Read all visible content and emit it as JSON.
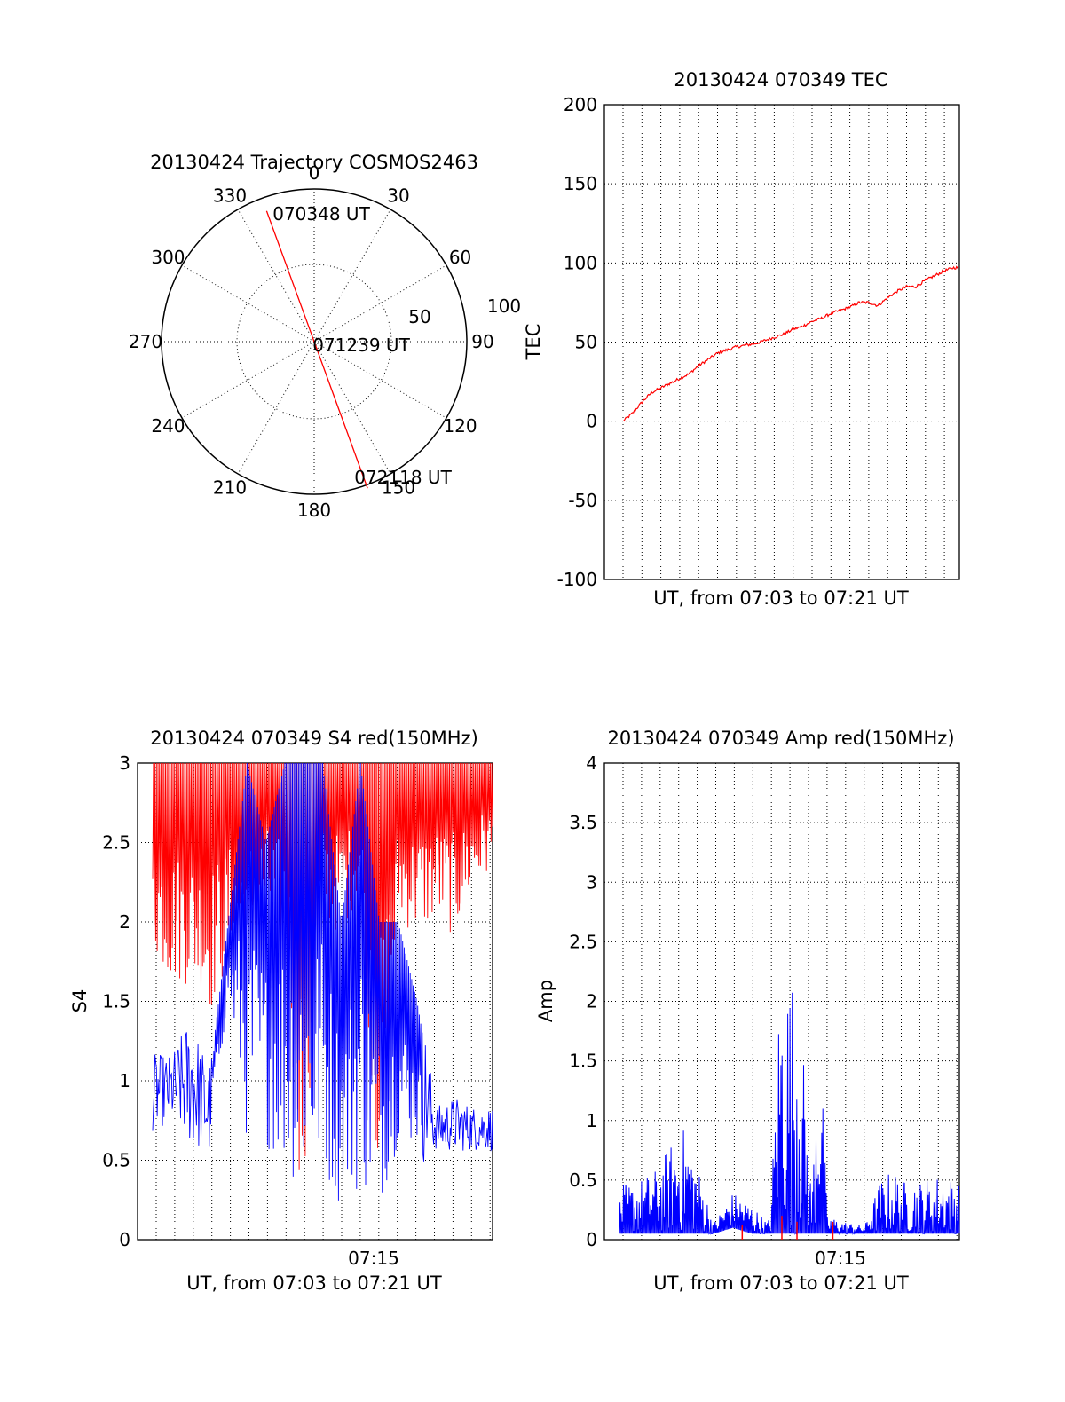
{
  "chart_data": [
    {
      "type": "polar-trajectory",
      "title": "20130424 Trajectory COSMOS2463",
      "azimuth_labels": [
        "0",
        "30",
        "60",
        "90",
        "120",
        "150",
        "180",
        "210",
        "240",
        "270",
        "300",
        "330"
      ],
      "ring_labels": [
        "50",
        "100"
      ],
      "points": [
        {
          "label": "070348 UT",
          "azimuth_deg": 340,
          "zenith_deg": 82
        },
        {
          "label": "071239 UT",
          "azimuth_deg": 0,
          "zenith_deg": 0
        },
        {
          "label": "072118 UT",
          "azimuth_deg": 160,
          "zenith_deg": 92
        }
      ],
      "series_color": "#ff0000"
    },
    {
      "type": "line",
      "title": "20130424 070349 TEC",
      "xlabel": "UT, from 07:03 to 07:21 UT",
      "ylabel": "TEC",
      "ylim": [
        -100,
        200
      ],
      "yticks": [
        "200",
        "150",
        "100",
        "50",
        "0",
        "-50",
        "-100"
      ],
      "x_minutes_from_0703": [
        0.0,
        0.5,
        1.0,
        1.5,
        2.0,
        2.5,
        3.0,
        3.5,
        4.0,
        4.5,
        5.0,
        5.5,
        6.0,
        6.5,
        7.0,
        7.5,
        8.0,
        8.5,
        9.0,
        9.5,
        10.0,
        10.5,
        11.0,
        11.5,
        12.0,
        12.5,
        13.0,
        13.5,
        14.0,
        14.5,
        15.0,
        15.5,
        16.0,
        16.5,
        17.0,
        17.5
      ],
      "values": [
        0,
        5,
        12,
        18,
        21,
        24,
        27,
        30,
        35,
        39,
        43,
        45,
        47,
        48,
        49,
        51,
        53,
        55,
        58,
        60,
        63,
        65,
        68,
        70,
        72,
        75,
        75,
        73,
        78,
        82,
        85,
        85,
        89,
        92,
        95,
        97
      ],
      "series_color": "#ff0000"
    },
    {
      "type": "line",
      "title": "20130424 070349 S4 red(150MHz)",
      "xlabel": "UT, from 07:03 to 07:21 UT",
      "ylabel": "S4",
      "ylim": [
        0,
        3
      ],
      "yticks": [
        "3",
        "2.5",
        "2",
        "1.5",
        "1",
        "0.5",
        "0"
      ],
      "xtick_label": "07:15",
      "series": [
        {
          "color": "#ff0000",
          "x_minutes_from_0703": [
            0.0,
            1.0,
            2.0,
            3.0,
            4.0,
            5.0,
            6.0,
            7.0,
            8.0,
            9.0,
            10.0,
            11.0,
            12.0,
            13.0,
            14.0,
            15.0,
            16.0,
            17.0,
            18.0
          ],
          "low": [
            1.8,
            1.6,
            1.6,
            1.4,
            1.7,
            1.8,
            2.0,
            1.8,
            0.0,
            2.0,
            1.9,
            2.2,
            0.2,
            2.0,
            1.9,
            2.0,
            1.9,
            2.2,
            2.3
          ],
          "high": [
            3,
            3,
            3,
            3,
            3,
            3,
            3,
            3,
            3,
            3,
            3,
            3,
            3,
            3,
            3,
            3,
            3,
            3,
            3
          ]
        },
        {
          "color": "#0000ff",
          "x_minutes_from_0703": [
            0.0,
            1.0,
            2.0,
            3.0,
            4.0,
            5.0,
            6.0,
            7.0,
            8.0,
            9.0,
            10.0,
            11.0,
            12.0,
            13.0,
            14.0,
            15.0,
            16.0,
            17.0,
            18.0
          ],
          "low": [
            0.75,
            0.8,
            0.7,
            0.6,
            1.5,
            0.6,
            0.6,
            0.4,
            0.3,
            0.4,
            0.2,
            0.3,
            0.2,
            0.6,
            0.6,
            0.6,
            0.6,
            0.6,
            0.6
          ],
          "high": [
            1.1,
            1.1,
            1.3,
            1.0,
            2.0,
            3.0,
            2.5,
            3.0,
            3.0,
            3.0,
            2.0,
            3.0,
            2.0,
            2.0,
            1.5,
            0.8,
            0.85,
            0.8,
            0.8
          ]
        }
      ]
    },
    {
      "type": "line",
      "title": "20130424 070349 Amp red(150MHz)",
      "xlabel": "UT, from 07:03 to 07:21 UT",
      "ylabel": "Amp",
      "ylim": [
        0,
        4
      ],
      "yticks": [
        "4",
        "3.5",
        "3",
        "2.5",
        "2",
        "1.5",
        "1",
        "0.5",
        "0"
      ],
      "xtick_label": "07:15",
      "series": [
        {
          "color": "#0000ff",
          "x_minutes_from_0703": [
            0.0,
            1.0,
            2.0,
            3.0,
            3.5,
            4.0,
            5.0,
            6.0,
            7.0,
            7.8,
            8.0,
            8.5,
            9.5,
            10.2,
            10.5,
            11.0,
            12.0,
            13.0,
            13.8,
            14.5,
            15.0,
            16.0,
            17.0,
            18.0
          ],
          "high": [
            0.45,
            0.5,
            0.6,
            0.9,
            0.95,
            0.7,
            0.15,
            0.4,
            0.3,
            0.15,
            0.2,
            2.3,
            2.2,
            0.3,
            2.3,
            0.2,
            0.15,
            0.12,
            0.5,
            0.6,
            0.5,
            0.5,
            0.55,
            0.5
          ],
          "low": [
            0.05,
            0.05,
            0.05,
            0.05,
            0.05,
            0.05,
            0.05,
            0.1,
            0.05,
            0.05,
            0.05,
            0.05,
            0.05,
            0.05,
            0.05,
            0.05,
            0.05,
            0.05,
            0.05,
            0.05,
            0.05,
            0.05,
            0.05,
            0.05
          ]
        },
        {
          "color": "#ff0000",
          "spike_x_minutes_from_0703": [
            6.5,
            8.6,
            9.4,
            11.3
          ],
          "spike_heights": [
            0.12,
            0.2,
            0.15,
            0.15
          ]
        }
      ]
    }
  ]
}
